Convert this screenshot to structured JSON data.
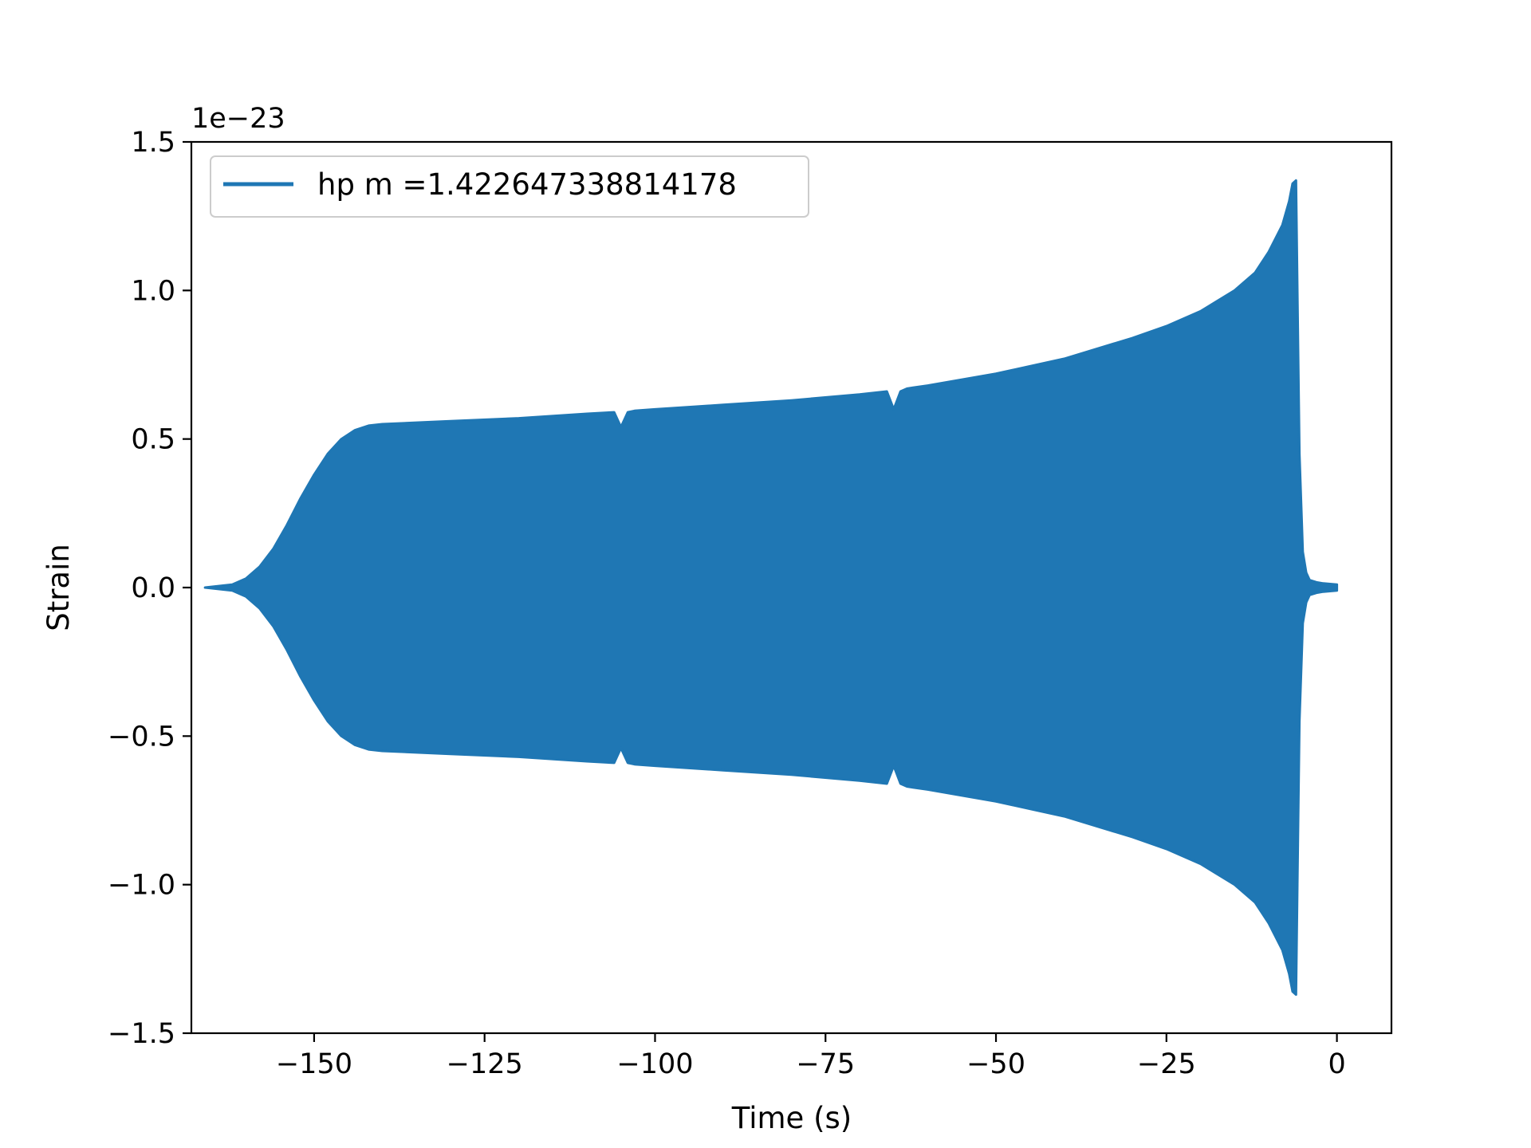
{
  "chart_data": {
    "type": "area",
    "title": "",
    "xlabel": "Time (s)",
    "ylabel": "Strain",
    "y_offset_label": "1e−23",
    "y_scale_factor": 1e-23,
    "xlim": [
      -168,
      8
    ],
    "ylim": [
      -1.5,
      1.5
    ],
    "x_ticks": [
      -150,
      -125,
      -100,
      -75,
      -50,
      -25,
      0
    ],
    "x_tick_labels": [
      "−150",
      "−125",
      "−100",
      "−75",
      "−50",
      "−25",
      "0"
    ],
    "y_ticks": [
      -1.5,
      -1.0,
      -0.5,
      0.0,
      0.5,
      1.0,
      1.5
    ],
    "y_tick_labels": [
      "−1.5",
      "−1.0",
      "−0.5",
      "0.0",
      "0.5",
      "1.0",
      "1.5"
    ],
    "grid": false,
    "legend_position": "top-left",
    "series": [
      {
        "name": "hp m =1.422647338814178",
        "color": "#1f77b4",
        "envelope": {
          "t": [
            -166,
            -162,
            -160,
            -158,
            -156,
            -154,
            -152,
            -150,
            -148,
            -146,
            -144,
            -142,
            -140,
            -130,
            -120,
            -110,
            -106,
            -105,
            -104,
            -103,
            -100,
            -90,
            -80,
            -70,
            -66,
            -65,
            -64,
            -63,
            -60,
            -50,
            -40,
            -30,
            -25,
            -20,
            -15,
            -12,
            -10,
            -8,
            -7,
            -6.5,
            -6,
            -5.8,
            -5.5,
            -5,
            -4.5,
            -4,
            -3,
            -2,
            -1,
            0
          ],
          "amp": [
            0.0,
            0.01,
            0.03,
            0.07,
            0.13,
            0.21,
            0.3,
            0.38,
            0.45,
            0.5,
            0.53,
            0.545,
            0.55,
            0.56,
            0.57,
            0.585,
            0.59,
            0.54,
            0.59,
            0.595,
            0.6,
            0.615,
            0.63,
            0.65,
            0.66,
            0.6,
            0.66,
            0.67,
            0.68,
            0.72,
            0.77,
            0.84,
            0.88,
            0.93,
            1.0,
            1.06,
            1.13,
            1.22,
            1.3,
            1.36,
            1.37,
            1.0,
            0.45,
            0.12,
            0.05,
            0.025,
            0.018,
            0.014,
            0.012,
            0.01
          ]
        }
      }
    ]
  }
}
